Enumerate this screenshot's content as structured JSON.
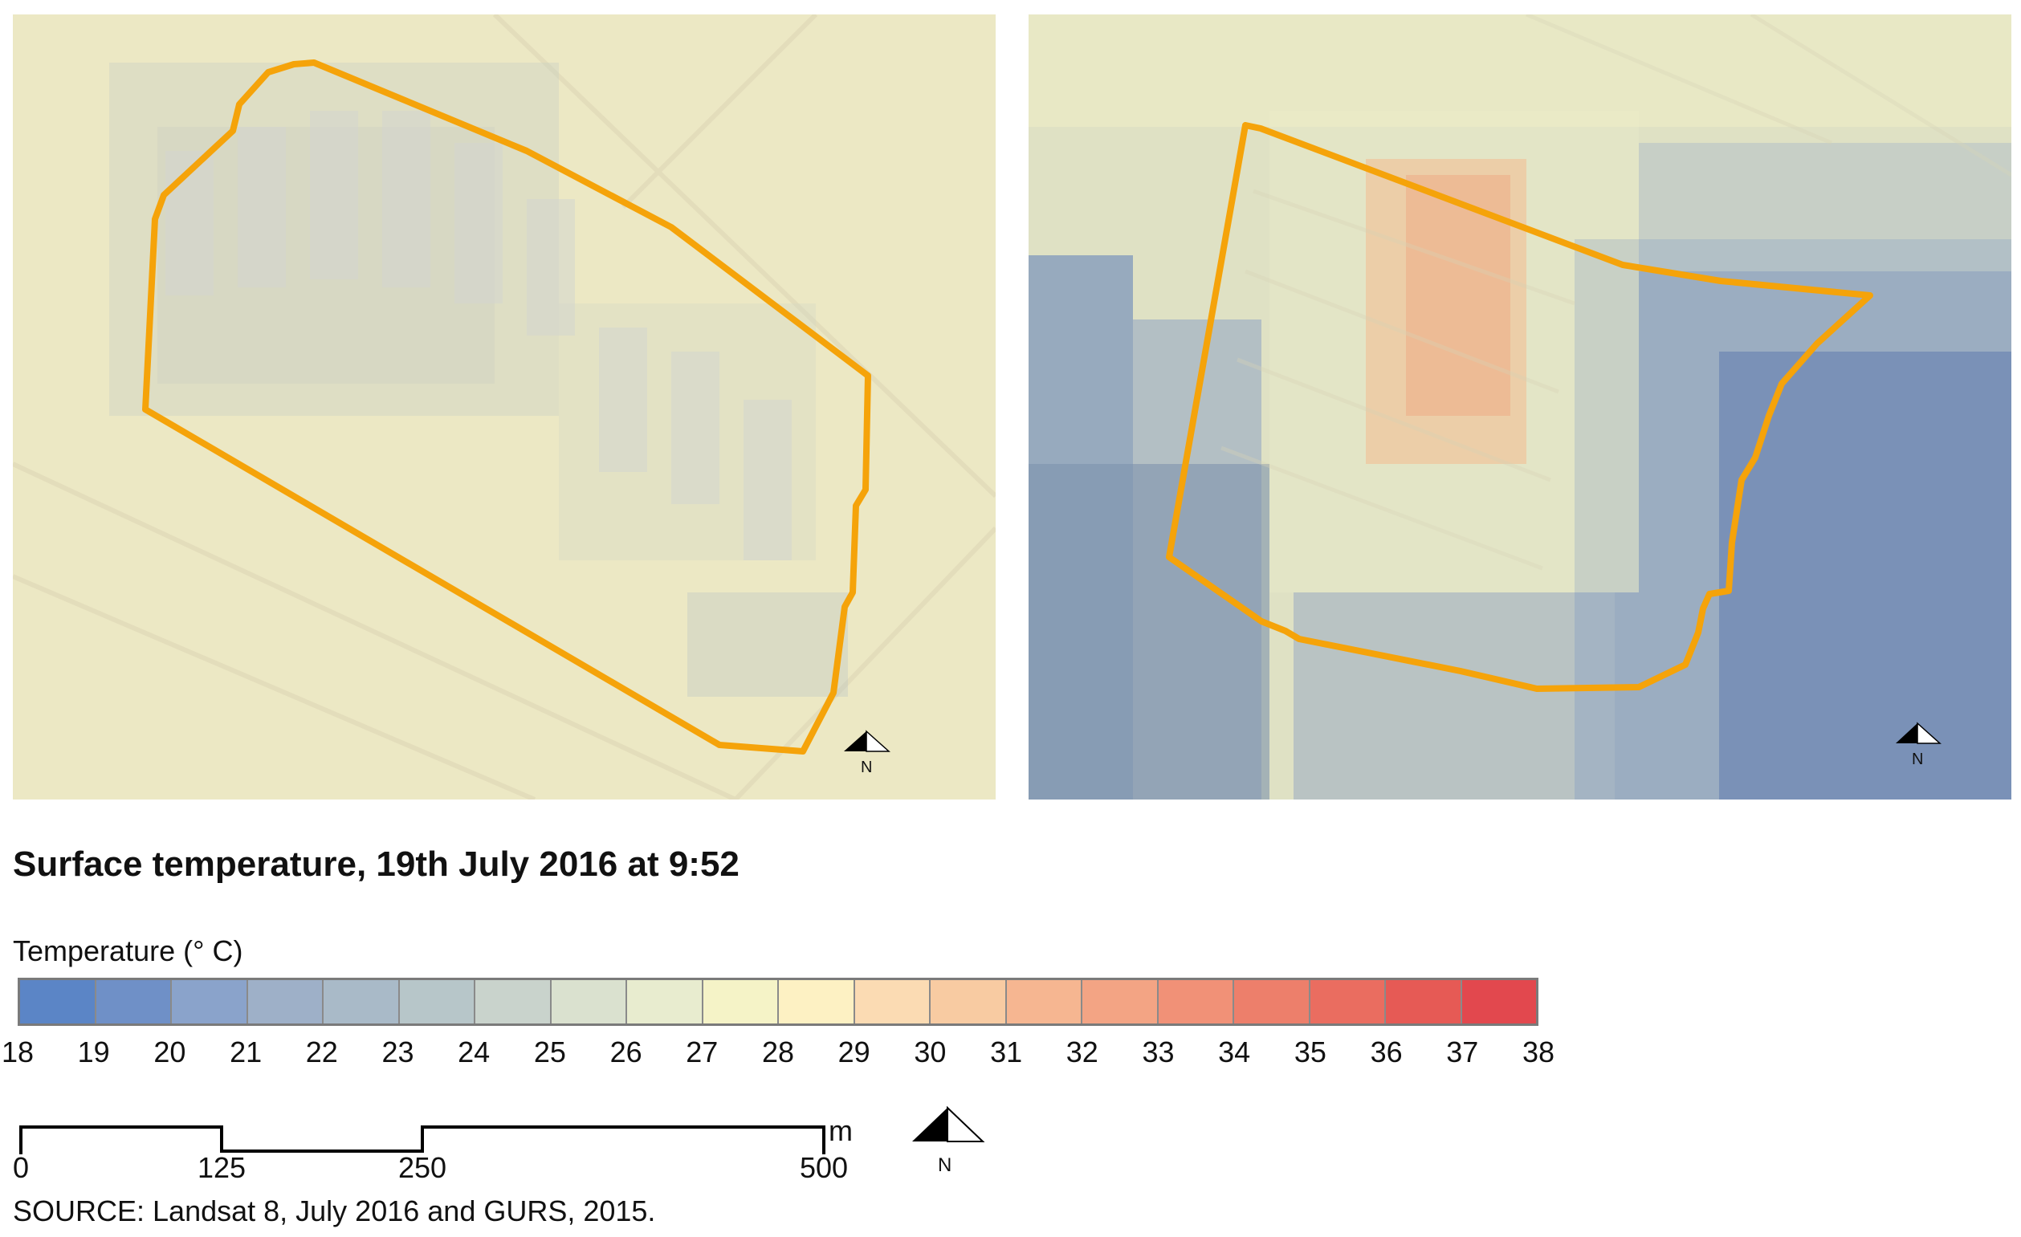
{
  "title": "Surface temperature, 19th July 2016 at 9:52",
  "legend": {
    "title": "Temperature (° C)",
    "ticks": [
      "18",
      "19",
      "20",
      "21",
      "22",
      "23",
      "24",
      "25",
      "26",
      "27",
      "28",
      "29",
      "30",
      "31",
      "32",
      "33",
      "34",
      "35",
      "36",
      "37",
      "38"
    ],
    "colors": [
      "#5b85c6",
      "#6f90c7",
      "#8aa3cb",
      "#9eb0c8",
      "#a9bac8",
      "#b7c6c9",
      "#c9d3cc",
      "#dae1cf",
      "#e8eccf",
      "#f5f3c7",
      "#fdf1c3",
      "#fbdbb3",
      "#f8cba2",
      "#f6b691",
      "#f3a484",
      "#f19177",
      "#ed7f6b",
      "#ea6d60",
      "#e65a55",
      "#e2484e"
    ]
  },
  "maps": [
    {
      "name": "left-map",
      "boundary_color": "#f5a30a",
      "north_label": "N"
    },
    {
      "name": "right-map",
      "boundary_color": "#f5a30a",
      "north_label": "N"
    }
  ],
  "scale_bar": {
    "labels": [
      "0",
      "125",
      "250",
      "500"
    ],
    "unit": "m",
    "north_label": "N"
  },
  "source": "SOURCE: Landsat 8, July 2016 and GURS, 2015."
}
